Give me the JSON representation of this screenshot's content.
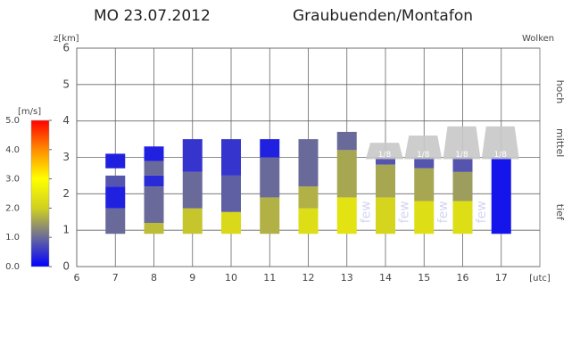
{
  "chart_data": {
    "type": "wind-profile",
    "title": "MO 23.07.2012",
    "subtitle": "Graubuenden/Montafon",
    "y_label": "z[km]",
    "x_label": "[utc]",
    "right_label": "Wolken",
    "cloud_levels": [
      {
        "label": "hoch",
        "value": 4.8
      },
      {
        "label": "mittel",
        "value": 3.4
      },
      {
        "label": "tief",
        "value": 1.5
      }
    ],
    "xlim": [
      6,
      18
    ],
    "xticks": [
      6,
      7,
      8,
      9,
      10,
      11,
      12,
      13,
      14,
      15,
      16,
      17
    ],
    "ylim": [
      0,
      6
    ],
    "yticks": [
      0,
      1,
      2,
      3,
      4,
      5,
      6
    ],
    "grid": true,
    "colorbar": {
      "label": "[m/s]",
      "lim": [
        0,
        5
      ],
      "colors": [
        "#0000ff",
        "#6a6a9a",
        "#d0d020",
        "#ffff00",
        "#ff8c00",
        "#ff0000"
      ],
      "ticks": [
        {
          "value": 0,
          "label": "0.0"
        },
        {
          "value": 1,
          "label": "1.0"
        },
        {
          "value": 2,
          "label": "2.0"
        },
        {
          "value": 3,
          "label": "3.0"
        },
        {
          "value": 4,
          "label": "4.0"
        },
        {
          "value": 5,
          "label": "5.0"
        }
      ]
    },
    "columns": [
      {
        "hour": 7,
        "segments": [
          {
            "bottom": 0.9,
            "top": 1.6,
            "speed": 1.0
          },
          {
            "bottom": 1.6,
            "top": 2.2,
            "speed": 0.3
          },
          {
            "bottom": 2.2,
            "top": 2.5,
            "speed": 0.8
          },
          {
            "bottom": 2.7,
            "top": 3.1,
            "speed": 0.3
          }
        ]
      },
      {
        "hour": 8,
        "segments": [
          {
            "bottom": 0.9,
            "top": 1.2,
            "speed": 1.8
          },
          {
            "bottom": 1.2,
            "top": 2.2,
            "speed": 1.0
          },
          {
            "bottom": 2.2,
            "top": 2.5,
            "speed": 0.4
          },
          {
            "bottom": 2.5,
            "top": 2.9,
            "speed": 1.0
          },
          {
            "bottom": 2.9,
            "top": 3.3,
            "speed": 0.3
          }
        ]
      },
      {
        "hour": 9,
        "segments": [
          {
            "bottom": 0.9,
            "top": 1.6,
            "speed": 1.9
          },
          {
            "bottom": 1.6,
            "top": 2.6,
            "speed": 1.0
          },
          {
            "bottom": 2.6,
            "top": 3.5,
            "speed": 0.5
          }
        ]
      },
      {
        "hour": 10,
        "segments": [
          {
            "bottom": 0.9,
            "top": 1.5,
            "speed": 2.2
          },
          {
            "bottom": 1.5,
            "top": 2.5,
            "speed": 0.9
          },
          {
            "bottom": 2.5,
            "top": 3.5,
            "speed": 0.5
          }
        ]
      },
      {
        "hour": 11,
        "segments": [
          {
            "bottom": 0.9,
            "top": 1.9,
            "speed": 1.7
          },
          {
            "bottom": 1.9,
            "top": 3.0,
            "speed": 1.0
          },
          {
            "bottom": 3.0,
            "top": 3.5,
            "speed": 0.3
          }
        ]
      },
      {
        "hour": 12,
        "segments": [
          {
            "bottom": 0.9,
            "top": 1.6,
            "speed": 2.3
          },
          {
            "bottom": 1.6,
            "top": 2.2,
            "speed": 1.7
          },
          {
            "bottom": 2.2,
            "top": 3.5,
            "speed": 1.0
          }
        ]
      },
      {
        "hour": 13,
        "segments": [
          {
            "bottom": 0.9,
            "top": 1.9,
            "speed": 2.4
          },
          {
            "bottom": 1.9,
            "top": 3.2,
            "speed": 1.6
          },
          {
            "bottom": 3.2,
            "top": 3.7,
            "speed": 1.0
          }
        ]
      },
      {
        "hour": 14,
        "segments": [
          {
            "bottom": 0.9,
            "top": 1.9,
            "speed": 2.1
          },
          {
            "bottom": 1.9,
            "top": 2.8,
            "speed": 1.6
          },
          {
            "bottom": 2.8,
            "top": 3.0,
            "speed": 0.8
          }
        ]
      },
      {
        "hour": 15,
        "segments": [
          {
            "bottom": 0.9,
            "top": 1.8,
            "speed": 2.3
          },
          {
            "bottom": 1.8,
            "top": 2.7,
            "speed": 1.6
          },
          {
            "bottom": 2.7,
            "top": 3.0,
            "speed": 0.8
          }
        ]
      },
      {
        "hour": 16,
        "segments": [
          {
            "bottom": 0.9,
            "top": 1.8,
            "speed": 2.3
          },
          {
            "bottom": 1.8,
            "top": 2.6,
            "speed": 1.5
          },
          {
            "bottom": 2.6,
            "top": 3.0,
            "speed": 0.8
          }
        ]
      },
      {
        "hour": 17,
        "segments": [
          {
            "bottom": 0.9,
            "top": 3.0,
            "speed": 0.2
          }
        ]
      }
    ],
    "clouds": [
      {
        "hour": 14,
        "bottom": 2.95,
        "top": 3.4,
        "label": "1/8"
      },
      {
        "hour": 15,
        "bottom": 2.95,
        "top": 3.6,
        "label": "1/8"
      },
      {
        "hour": 16,
        "bottom": 2.95,
        "top": 3.85,
        "label": "1/8"
      },
      {
        "hour": 17,
        "bottom": 2.95,
        "top": 3.85,
        "label": "1/8"
      }
    ],
    "low_clouds": [
      {
        "hour": 13.5,
        "z": 1.5,
        "label": "few"
      },
      {
        "hour": 14.5,
        "z": 1.5,
        "label": "few"
      },
      {
        "hour": 15.5,
        "z": 1.5,
        "label": "few"
      },
      {
        "hour": 16.5,
        "z": 1.5,
        "label": "few"
      }
    ]
  }
}
